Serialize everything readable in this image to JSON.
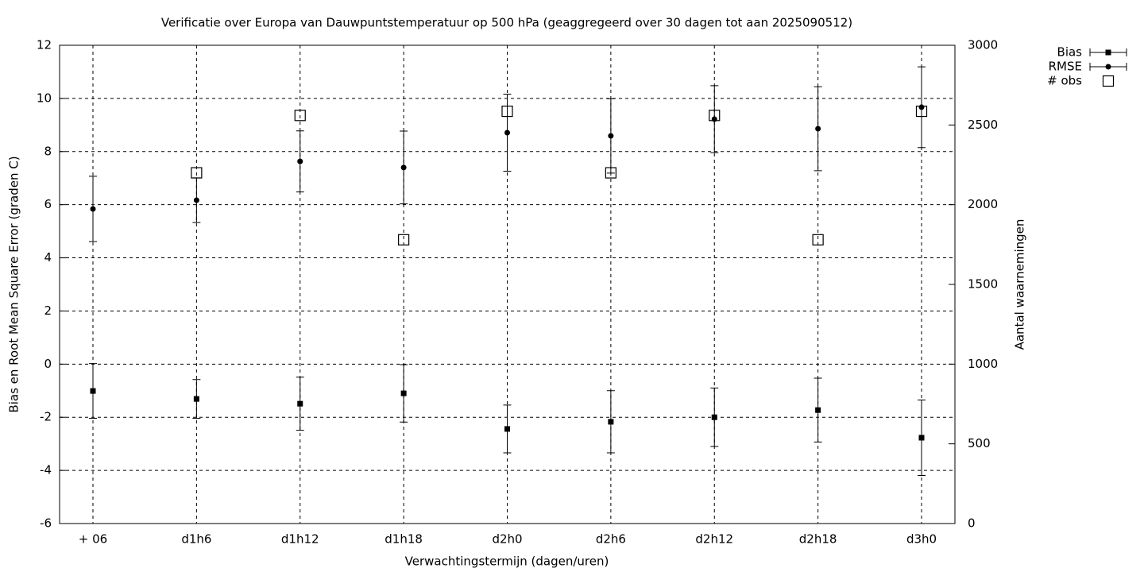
{
  "chart_data": {
    "type": "errorbar",
    "title": "Verificatie over Europa van Dauwpuntstemperatuur op 500 hPa (geaggregeerd over 30 dagen tot aan 2025090512)",
    "x_label": "Verwachtingstermijn (dagen/uren)",
    "y_label": "Bias en Root Mean Square Error (graden C)",
    "y2_label": "Aantal waarnemingen",
    "categories": [
      "+ 06",
      "d1h6",
      "d1h12",
      "d1h18",
      "d2h0",
      "d2h6",
      "d2h12",
      "d2h18",
      "d3h0"
    ],
    "series": [
      {
        "name": "Bias",
        "color": "#000000",
        "marker": "square",
        "values": [
          -1.01,
          -1.31,
          -1.49,
          -1.1,
          -2.44,
          -2.17,
          -2.0,
          -1.73,
          -2.77
        ],
        "errors": [
          1.03,
          0.73,
          1.0,
          1.08,
          0.9,
          1.17,
          1.1,
          1.2,
          1.42
        ]
      },
      {
        "name": "RMSE",
        "color": "#000000",
        "marker": "circle",
        "values": [
          5.84,
          6.17,
          7.63,
          7.4,
          8.71,
          8.59,
          9.22,
          8.86,
          9.67
        ],
        "errors": [
          1.23,
          0.84,
          1.15,
          1.37,
          1.45,
          1.4,
          1.26,
          1.58,
          1.52
        ]
      },
      {
        "name": "# obs",
        "color": "#000000",
        "marker": "open-square",
        "axis": "y2",
        "values": [
          null,
          2200,
          2560,
          1780,
          2586,
          2200,
          2560,
          1780,
          2586
        ]
      }
    ],
    "ylim": [
      -6,
      12
    ],
    "yticks": [
      -6,
      -4,
      -2,
      0,
      2,
      4,
      6,
      8,
      10,
      12
    ],
    "y2lim": [
      0,
      3000
    ],
    "y2ticks": [
      0,
      500,
      1000,
      1500,
      2000,
      2500,
      3000
    ],
    "grid": true,
    "legend": "top-right"
  }
}
